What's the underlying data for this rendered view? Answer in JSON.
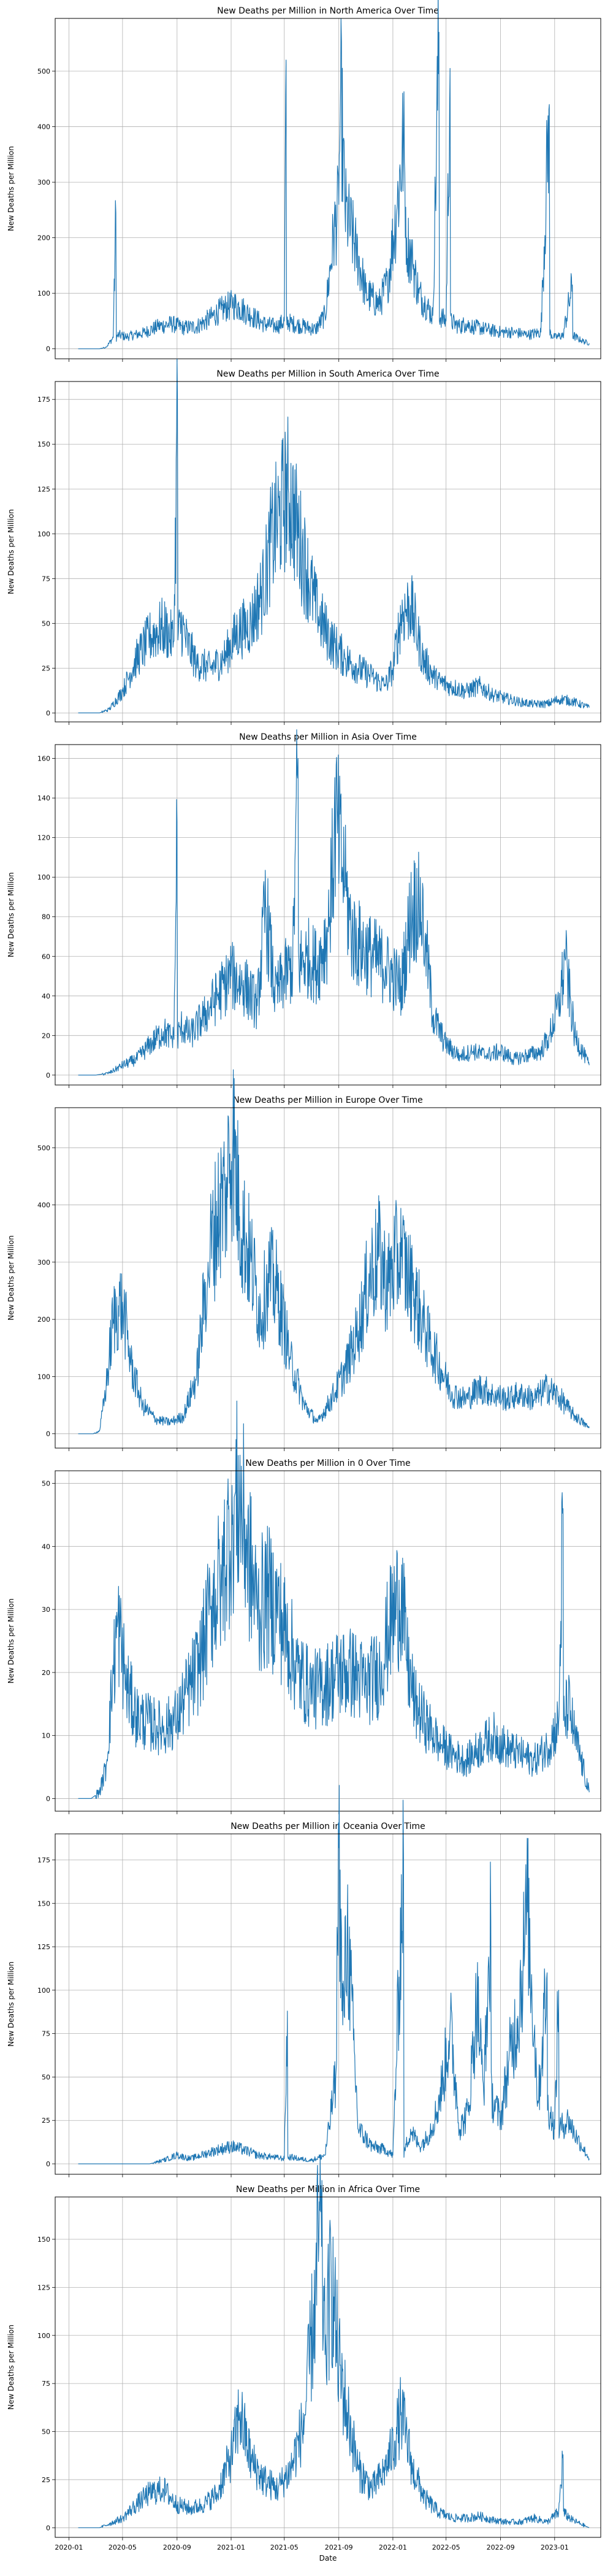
{
  "chart_data": [
    {
      "type": "line",
      "title": "New Deaths per Million in North America Over Time",
      "xlabel": "",
      "ylabel": "New Deaths per Million",
      "ylim": [
        -18,
        595
      ],
      "yticks": [
        0,
        100,
        200,
        300,
        400,
        500
      ],
      "color": "#1f77b4",
      "grid": true,
      "x": [
        "2020-01-22",
        "2020-03-10",
        "2020-03-25",
        "2020-04-10",
        "2020-04-16",
        "2020-04-22",
        "2020-05-10",
        "2020-06-15",
        "2020-07-20",
        "2020-08-20",
        "2020-09-15",
        "2020-10-15",
        "2020-11-15",
        "2020-12-10",
        "2021-01-05",
        "2021-01-20",
        "2021-02-15",
        "2021-03-15",
        "2021-04-15",
        "2021-05-01",
        "2021-05-05",
        "2021-05-20",
        "2021-06-15",
        "2021-07-10",
        "2021-08-01",
        "2021-08-20",
        "2021-09-01",
        "2021-09-05",
        "2021-09-15",
        "2021-10-10",
        "2021-11-01",
        "2021-12-01",
        "2021-12-20",
        "2022-01-10",
        "2022-01-25",
        "2022-02-01",
        "2022-02-15",
        "2022-03-01",
        "2022-03-15",
        "2022-04-01",
        "2022-04-15",
        "2022-05-01",
        "2022-05-10",
        "2022-06-01",
        "2022-06-14",
        "2022-07-01",
        "2022-08-01",
        "2022-09-01",
        "2022-10-01",
        "2022-11-01",
        "2022-12-01",
        "2022-12-20",
        "2023-01-01",
        "2023-01-20",
        "2023-02-10",
        "2023-03-01",
        "2023-03-20"
      ],
      "y": [
        0,
        0,
        3,
        20,
        245,
        25,
        22,
        28,
        40,
        45,
        38,
        40,
        55,
        70,
        80,
        75,
        60,
        45,
        40,
        50,
        520,
        45,
        40,
        35,
        60,
        200,
        260,
        470,
        250,
        180,
        100,
        80,
        120,
        250,
        380,
        200,
        150,
        100,
        80,
        60,
        570,
        50,
        505,
        40,
        45,
        40,
        35,
        30,
        30,
        25,
        30,
        440,
        20,
        25,
        115,
        15,
        10
      ]
    },
    {
      "type": "line",
      "title": "New Deaths per Million in South America Over Time",
      "xlabel": "",
      "ylabel": "New Deaths per Million",
      "ylim": [
        -5,
        185
      ],
      "yticks": [
        0,
        25,
        50,
        75,
        100,
        125,
        150,
        175
      ],
      "color": "#1f77b4",
      "grid": true,
      "x": [
        "2020-01-22",
        "2020-03-10",
        "2020-04-01",
        "2020-05-01",
        "2020-06-01",
        "2020-07-01",
        "2020-08-01",
        "2020-08-25",
        "2020-09-02",
        "2020-09-10",
        "2020-09-25",
        "2020-10-15",
        "2020-11-15",
        "2020-12-15",
        "2021-01-15",
        "2021-02-15",
        "2021-03-15",
        "2021-04-01",
        "2021-04-20",
        "2021-05-10",
        "2021-06-01",
        "2021-06-20",
        "2021-07-15",
        "2021-08-15",
        "2021-09-15",
        "2021-10-15",
        "2021-11-15",
        "2021-12-15",
        "2022-01-01",
        "2022-01-20",
        "2022-02-10",
        "2022-03-10",
        "2022-04-10",
        "2022-05-10",
        "2022-06-15",
        "2022-07-15",
        "2022-08-15",
        "2022-09-15",
        "2022-10-15",
        "2022-11-15",
        "2022-12-15",
        "2023-01-15",
        "2023-02-15",
        "2023-03-20"
      ],
      "y": [
        0,
        0,
        2,
        12,
        30,
        42,
        48,
        40,
        175,
        50,
        38,
        28,
        25,
        30,
        45,
        50,
        70,
        95,
        110,
        125,
        100,
        80,
        55,
        40,
        30,
        25,
        20,
        15,
        25,
        55,
        60,
        30,
        18,
        15,
        12,
        15,
        10,
        8,
        6,
        5,
        5,
        8,
        6,
        3
      ]
    },
    {
      "type": "line",
      "title": "New Deaths per Million in Asia Over Time",
      "xlabel": "",
      "ylabel": "New Deaths per Million",
      "ylim": [
        -5,
        167
      ],
      "yticks": [
        0,
        20,
        40,
        60,
        80,
        100,
        120,
        140,
        160
      ],
      "color": "#1f77b4",
      "grid": true,
      "x": [
        "2020-01-22",
        "2020-03-01",
        "2020-04-01",
        "2020-05-01",
        "2020-06-01",
        "2020-07-01",
        "2020-08-01",
        "2020-08-25",
        "2020-09-01",
        "2020-09-10",
        "2020-10-01",
        "2020-11-01",
        "2020-12-01",
        "2021-01-01",
        "2021-02-01",
        "2021-03-01",
        "2021-03-20",
        "2021-04-10",
        "2021-05-01",
        "2021-05-20",
        "2021-06-01",
        "2021-06-20",
        "2021-07-15",
        "2021-08-10",
        "2021-08-25",
        "2021-09-15",
        "2021-10-01",
        "2021-10-20",
        "2021-11-15",
        "2021-12-15",
        "2022-01-01",
        "2022-01-20",
        "2022-02-10",
        "2022-03-01",
        "2022-03-15",
        "2022-04-01",
        "2022-05-01",
        "2022-06-01",
        "2022-07-01",
        "2022-08-01",
        "2022-09-01",
        "2022-10-01",
        "2022-11-01",
        "2022-12-01",
        "2022-12-20",
        "2023-01-10",
        "2023-01-25",
        "2023-02-15",
        "2023-03-20"
      ],
      "y": [
        0,
        0,
        1,
        5,
        8,
        15,
        22,
        18,
        128,
        25,
        20,
        30,
        40,
        50,
        45,
        35,
        85,
        40,
        50,
        55,
        160,
        60,
        55,
        75,
        130,
        95,
        70,
        65,
        60,
        55,
        50,
        45,
        80,
        90,
        70,
        30,
        15,
        10,
        12,
        10,
        12,
        8,
        10,
        12,
        20,
        35,
        58,
        20,
        5
      ]
    },
    {
      "type": "line",
      "title": "New Deaths per Million in Europe Over Time",
      "xlabel": "",
      "ylabel": "New Deaths per Million",
      "ylim": [
        -25,
        570
      ],
      "yticks": [
        0,
        100,
        200,
        300,
        400,
        500
      ],
      "color": "#1f77b4",
      "grid": true,
      "x": [
        "2020-01-22",
        "2020-02-25",
        "2020-03-10",
        "2020-03-25",
        "2020-04-10",
        "2020-05-01",
        "2020-05-20",
        "2020-06-15",
        "2020-07-15",
        "2020-08-15",
        "2020-09-15",
        "2020-10-15",
        "2020-11-10",
        "2020-12-01",
        "2020-12-20",
        "2021-01-05",
        "2021-01-20",
        "2021-02-15",
        "2021-03-10",
        "2021-03-25",
        "2021-04-15",
        "2021-05-15",
        "2021-06-15",
        "2021-07-15",
        "2021-08-15",
        "2021-09-15",
        "2021-10-15",
        "2021-11-10",
        "2021-12-01",
        "2021-12-20",
        "2022-01-05",
        "2022-01-20",
        "2022-02-15",
        "2022-03-15",
        "2022-04-15",
        "2022-05-15",
        "2022-06-15",
        "2022-07-15",
        "2022-08-15",
        "2022-09-15",
        "2022-10-15",
        "2022-11-15",
        "2022-12-15",
        "2023-01-10",
        "2023-02-10",
        "2023-03-20"
      ],
      "y": [
        0,
        0,
        5,
        80,
        200,
        230,
        120,
        50,
        25,
        20,
        30,
        100,
        300,
        380,
        430,
        520,
        380,
        300,
        200,
        280,
        250,
        130,
        50,
        20,
        60,
        110,
        180,
        280,
        310,
        260,
        300,
        310,
        250,
        180,
        120,
        70,
        60,
        80,
        70,
        60,
        70,
        60,
        80,
        65,
        35,
        10
      ]
    },
    {
      "type": "line",
      "title": "New Deaths per Million in 0 Over Time",
      "xlabel": "",
      "ylabel": "New Deaths per Million",
      "ylim": [
        -2,
        52
      ],
      "yticks": [
        0,
        10,
        20,
        30,
        40,
        50
      ],
      "color": "#1f77b4",
      "grid": true,
      "x": [
        "2020-01-22",
        "2020-02-20",
        "2020-03-10",
        "2020-03-25",
        "2020-04-10",
        "2020-04-20",
        "2020-05-10",
        "2020-06-01",
        "2020-07-01",
        "2020-08-01",
        "2020-09-01",
        "2020-10-01",
        "2020-10-25",
        "2020-11-15",
        "2020-12-10",
        "2021-01-05",
        "2021-01-20",
        "2021-02-10",
        "2021-03-01",
        "2021-03-25",
        "2021-04-15",
        "2021-05-10",
        "2021-06-01",
        "2021-07-01",
        "2021-08-01",
        "2021-09-01",
        "2021-10-01",
        "2021-11-01",
        "2021-12-01",
        "2021-12-25",
        "2022-01-20",
        "2022-02-01",
        "2022-02-20",
        "2022-03-15",
        "2022-04-15",
        "2022-05-15",
        "2022-06-15",
        "2022-07-15",
        "2022-08-15",
        "2022-09-15",
        "2022-10-15",
        "2022-11-15",
        "2022-12-15",
        "2023-01-10",
        "2023-01-20",
        "2023-02-01",
        "2023-02-15",
        "2023-03-20"
      ],
      "y": [
        0,
        0,
        1,
        5,
        20,
        28,
        18,
        13,
        12,
        11,
        13,
        18,
        22,
        30,
        35,
        45,
        48,
        38,
        30,
        32,
        30,
        25,
        20,
        17,
        18,
        20,
        20,
        18,
        20,
        27,
        33,
        22,
        15,
        12,
        9,
        7,
        6,
        8,
        10,
        8,
        7,
        6,
        8,
        12,
        46,
        15,
        10,
        1
      ]
    },
    {
      "type": "line",
      "title": "New Deaths per Million in Oceania Over Time",
      "xlabel": "",
      "ylabel": "New Deaths per Million",
      "ylim": [
        -6,
        190
      ],
      "yticks": [
        0,
        25,
        50,
        75,
        100,
        125,
        150,
        175
      ],
      "color": "#1f77b4",
      "grid": true,
      "x": [
        "2020-01-22",
        "2020-04-01",
        "2020-07-01",
        "2020-08-01",
        "2020-09-01",
        "2020-10-01",
        "2020-12-01",
        "2021-01-01",
        "2021-02-01",
        "2021-03-01",
        "2021-04-01",
        "2021-05-01",
        "2021-05-08",
        "2021-05-15",
        "2021-06-01",
        "2021-07-01",
        "2021-08-01",
        "2021-08-15",
        "2021-08-25",
        "2021-09-01",
        "2021-09-10",
        "2021-09-20",
        "2021-10-15",
        "2021-11-15",
        "2021-12-15",
        "2022-01-01",
        "2022-01-25",
        "2022-02-10",
        "2022-03-01",
        "2022-03-20",
        "2022-04-10",
        "2022-04-25",
        "2022-05-10",
        "2022-06-01",
        "2022-06-20",
        "2022-07-10",
        "2022-07-25",
        "2022-08-10",
        "2022-09-01",
        "2022-09-20",
        "2022-10-10",
        "2022-11-01",
        "2022-11-25",
        "2022-12-15",
        "2023-01-01",
        "2023-01-10",
        "2023-02-01",
        "2023-02-20",
        "2023-03-20"
      ],
      "y": [
        0,
        0,
        0,
        2,
        5,
        3,
        8,
        10,
        8,
        5,
        4,
        3,
        88,
        4,
        3,
        2,
        5,
        30,
        50,
        182,
        80,
        135,
        20,
        10,
        8,
        5,
        175,
        20,
        10,
        15,
        30,
        50,
        80,
        20,
        30,
        95,
        40,
        140,
        25,
        60,
        85,
        145,
        35,
        110,
        20,
        100,
        25,
        15,
        3
      ]
    },
    {
      "type": "line",
      "title": "New Deaths per Million in Africa Over Time",
      "xlabel": "Date",
      "ylabel": "New Deaths per Million",
      "ylim": [
        -5,
        172
      ],
      "yticks": [
        0,
        25,
        50,
        75,
        100,
        125,
        150
      ],
      "color": "#1f77b4",
      "grid": true,
      "x": [
        "2020-01-22",
        "2020-02-20",
        "2020-03-10",
        "2020-04-01",
        "2020-05-01",
        "2020-06-01",
        "2020-07-01",
        "2020-08-01",
        "2020-09-01",
        "2020-10-01",
        "2020-11-01",
        "2020-12-01",
        "2021-01-05",
        "2021-01-20",
        "2021-02-15",
        "2021-03-15",
        "2021-04-15",
        "2021-05-15",
        "2021-06-15",
        "2021-07-10",
        "2021-07-20",
        "2021-08-01",
        "2021-08-15",
        "2021-09-01",
        "2021-09-20",
        "2021-10-15",
        "2021-11-15",
        "2021-12-15",
        "2022-01-05",
        "2022-01-20",
        "2022-02-15",
        "2022-03-15",
        "2022-04-15",
        "2022-05-15",
        "2022-06-15",
        "2022-07-15",
        "2022-08-15",
        "2022-09-15",
        "2022-10-15",
        "2022-11-15",
        "2022-12-15",
        "2023-01-10",
        "2023-01-20",
        "2023-02-10",
        "2023-03-20"
      ],
      "y": [
        0,
        0,
        0,
        2,
        5,
        12,
        18,
        20,
        12,
        10,
        12,
        18,
        40,
        60,
        35,
        25,
        20,
        30,
        55,
        120,
        165,
        90,
        130,
        85,
        60,
        30,
        20,
        30,
        45,
        60,
        30,
        15,
        8,
        5,
        5,
        6,
        4,
        3,
        3,
        5,
        3,
        8,
        38,
        4,
        0
      ]
    }
  ],
  "x_axis": {
    "ticks": [
      "2020-01",
      "2020-05",
      "2020-09",
      "2021-01",
      "2021-05",
      "2021-09",
      "2022-01",
      "2022-05",
      "2022-09",
      "2023-01"
    ],
    "tick_dates": [
      "2020-01-01",
      "2020-05-01",
      "2020-09-01",
      "2021-01-01",
      "2021-05-01",
      "2021-09-01",
      "2022-01-01",
      "2022-05-01",
      "2022-09-01",
      "2023-01-01"
    ],
    "range": [
      "2019-12-01",
      "2023-04-15"
    ]
  }
}
